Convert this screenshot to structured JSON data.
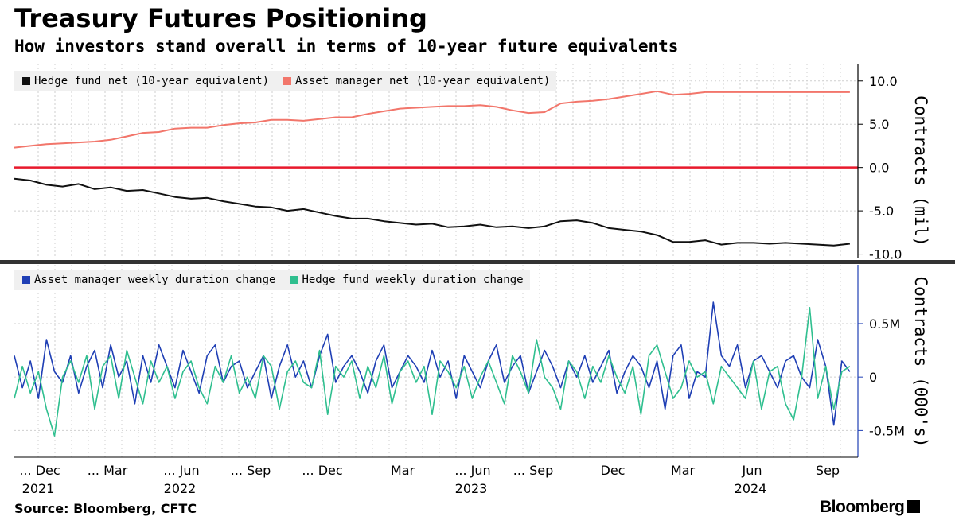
{
  "title": "Treasury Futures Positioning",
  "subtitle": "How investors stand overall in terms of 10-year future equivalents",
  "source": "Source: Bloomberg, CFTC",
  "brand": "Bloomberg",
  "colors": {
    "hedge_fund_net": "#111111",
    "asset_manager_net": "#f2766b",
    "zero_line": "#e8192c",
    "asset_manager_weekly": "#1f3fb5",
    "hedge_fund_weekly": "#2fbf8f",
    "grid": "#cfcfcf",
    "legend_bg": "#f0f0f0"
  },
  "x_axis": {
    "ticks": [
      {
        "label": "... Dec",
        "year": "2021"
      },
      {
        "label": "... Mar",
        "year": ""
      },
      {
        "label": "... Jun",
        "year": "2022"
      },
      {
        "label": "... Sep",
        "year": ""
      },
      {
        "label": "... Dec",
        "year": ""
      },
      {
        "label": "Mar",
        "year": ""
      },
      {
        "label": "... Jun",
        "year": "2023"
      },
      {
        "label": "... Sep",
        "year": ""
      },
      {
        "label": "Dec",
        "year": ""
      },
      {
        "label": "Mar",
        "year": ""
      },
      {
        "label": "Jun",
        "year": "2024"
      },
      {
        "label": "Sep",
        "year": ""
      }
    ]
  },
  "chart_data": [
    {
      "type": "line",
      "ylabel": "Contracts (mil)",
      "ylim": [
        -10.5,
        12
      ],
      "yticks": [
        10,
        5,
        0,
        -5,
        -10
      ],
      "ytick_labels": [
        "10.0",
        "5.0",
        "0.0",
        "-5.0",
        "-10.0"
      ],
      "grid": true,
      "legend_position": "top-left",
      "x": [
        0,
        4,
        8,
        12,
        16,
        20,
        24,
        28,
        32,
        36,
        40,
        44,
        48,
        52,
        56,
        60,
        64,
        68,
        72,
        76,
        80,
        84,
        88,
        92,
        96,
        100,
        104,
        108,
        112,
        116,
        120,
        124,
        128,
        132,
        136,
        140,
        144,
        148,
        152,
        156,
        160,
        164,
        168,
        172,
        176,
        180,
        184,
        188,
        192,
        196,
        200,
        204,
        208
      ],
      "series": [
        {
          "name": "Hedge fund net (10-year equivalent)",
          "values": [
            -1.3,
            -1.5,
            -2.0,
            -2.2,
            -1.9,
            -2.5,
            -2.3,
            -2.7,
            -2.6,
            -3.0,
            -3.4,
            -3.6,
            -3.5,
            -3.9,
            -4.2,
            -4.5,
            -4.6,
            -5.0,
            -4.8,
            -5.2,
            -5.6,
            -5.9,
            -5.9,
            -6.2,
            -6.4,
            -6.6,
            -6.5,
            -6.9,
            -6.8,
            -6.6,
            -6.9,
            -6.8,
            -7.0,
            -6.8,
            -6.2,
            -6.1,
            -6.4,
            -7.0,
            -7.2,
            -7.4,
            -7.8,
            -8.6,
            -8.6,
            -8.4,
            -8.9,
            -8.7,
            -8.7,
            -8.8,
            -8.7,
            -8.8,
            -8.9,
            -9.0,
            -8.8
          ]
        },
        {
          "name": "Asset manager net (10-year equivalent)",
          "values": [
            2.3,
            2.5,
            2.7,
            2.8,
            2.9,
            3.0,
            3.2,
            3.6,
            4.0,
            4.1,
            4.5,
            4.6,
            4.6,
            4.9,
            5.1,
            5.2,
            5.5,
            5.5,
            5.4,
            5.6,
            5.8,
            5.8,
            6.2,
            6.5,
            6.8,
            6.9,
            7.0,
            7.1,
            7.1,
            7.2,
            7.0,
            6.6,
            6.3,
            6.4,
            7.4,
            7.6,
            7.7,
            7.9,
            8.2,
            8.5,
            8.8,
            8.4,
            8.5,
            8.7,
            8.7,
            8.7,
            8.7,
            8.7,
            8.7,
            8.7,
            8.7,
            8.7,
            8.7
          ]
        }
      ]
    },
    {
      "type": "line",
      "ylabel": "Contracts (000's)",
      "ylim": [
        -0.75,
        1.05
      ],
      "yticks": [
        0.5,
        0,
        -0.5
      ],
      "ytick_labels": [
        "0.5M",
        "0",
        "-0.5M"
      ],
      "grid": true,
      "legend_position": "top-left",
      "x": [
        0,
        2,
        4,
        6,
        8,
        10,
        12,
        14,
        16,
        18,
        20,
        22,
        24,
        26,
        28,
        30,
        32,
        34,
        36,
        38,
        40,
        42,
        44,
        46,
        48,
        50,
        52,
        54,
        56,
        58,
        60,
        62,
        64,
        66,
        68,
        70,
        72,
        74,
        76,
        78,
        80,
        82,
        84,
        86,
        88,
        90,
        92,
        94,
        96,
        98,
        100,
        102,
        104,
        106,
        108,
        110,
        112,
        114,
        116,
        118,
        120,
        122,
        124,
        126,
        128,
        130,
        132,
        134,
        136,
        138,
        140,
        142,
        144,
        146,
        148,
        150,
        152,
        154,
        156,
        158,
        160,
        162,
        164,
        166,
        168,
        170,
        172,
        174,
        176,
        178,
        180,
        182,
        184,
        186,
        188,
        190,
        192,
        194,
        196,
        198,
        200,
        202,
        204,
        206,
        208
      ],
      "series": [
        {
          "name": "Asset manager weekly duration change",
          "values": [
            0.2,
            -0.1,
            0.15,
            -0.2,
            0.35,
            0.05,
            -0.05,
            0.2,
            -0.15,
            0.1,
            0.25,
            -0.1,
            0.3,
            0.0,
            0.15,
            -0.25,
            0.2,
            -0.05,
            0.3,
            0.1,
            -0.1,
            0.25,
            0.05,
            -0.15,
            0.2,
            0.3,
            -0.05,
            0.1,
            0.15,
            -0.1,
            0.05,
            0.2,
            -0.2,
            0.1,
            0.3,
            0.0,
            0.15,
            -0.1,
            0.2,
            0.4,
            -0.05,
            0.1,
            0.2,
            0.05,
            -0.15,
            0.15,
            0.3,
            -0.1,
            0.05,
            0.2,
            0.1,
            -0.05,
            0.25,
            0.0,
            0.15,
            -0.2,
            0.2,
            0.05,
            -0.1,
            0.15,
            0.3,
            -0.05,
            0.1,
            0.2,
            -0.15,
            0.05,
            0.25,
            0.1,
            -0.1,
            0.15,
            0.0,
            0.2,
            -0.05,
            0.1,
            0.25,
            -0.15,
            0.05,
            0.2,
            0.1,
            -0.1,
            0.15,
            -0.3,
            0.2,
            0.3,
            -0.2,
            0.05,
            0.0,
            0.7,
            0.2,
            0.1,
            0.3,
            -0.1,
            0.15,
            0.2,
            0.05,
            -0.1,
            0.15,
            0.2,
            0.0,
            -0.1,
            0.35,
            0.1,
            -0.45,
            0.15,
            0.05
          ]
        },
        {
          "name": "Hedge fund weekly duration change",
          "values": [
            -0.2,
            0.1,
            -0.15,
            0.05,
            -0.3,
            -0.55,
            0.0,
            0.15,
            -0.05,
            0.2,
            -0.3,
            0.1,
            0.2,
            -0.2,
            0.25,
            0.0,
            -0.25,
            0.15,
            -0.05,
            0.1,
            -0.2,
            0.05,
            0.15,
            -0.1,
            -0.25,
            0.1,
            -0.05,
            0.2,
            -0.15,
            0.0,
            -0.2,
            0.2,
            0.1,
            -0.3,
            0.05,
            0.15,
            -0.05,
            -0.1,
            0.25,
            -0.35,
            0.1,
            0.0,
            0.15,
            -0.2,
            0.1,
            -0.1,
            0.2,
            -0.25,
            0.05,
            0.15,
            -0.05,
            0.1,
            -0.35,
            0.15,
            0.05,
            -0.1,
            0.1,
            -0.2,
            0.0,
            0.15,
            -0.05,
            -0.25,
            0.2,
            0.05,
            -0.15,
            0.35,
            0.0,
            -0.1,
            -0.3,
            0.15,
            0.05,
            -0.2,
            0.1,
            -0.05,
            0.2,
            0.0,
            -0.15,
            0.1,
            -0.35,
            0.2,
            0.3,
            0.05,
            -0.2,
            -0.1,
            0.15,
            0.0,
            0.05,
            -0.25,
            0.1,
            0.0,
            -0.1,
            -0.2,
            0.15,
            -0.3,
            0.05,
            0.1,
            -0.25,
            -0.4,
            0.0,
            0.65,
            -0.2,
            0.1,
            -0.3,
            0.05,
            0.1
          ]
        }
      ]
    }
  ]
}
